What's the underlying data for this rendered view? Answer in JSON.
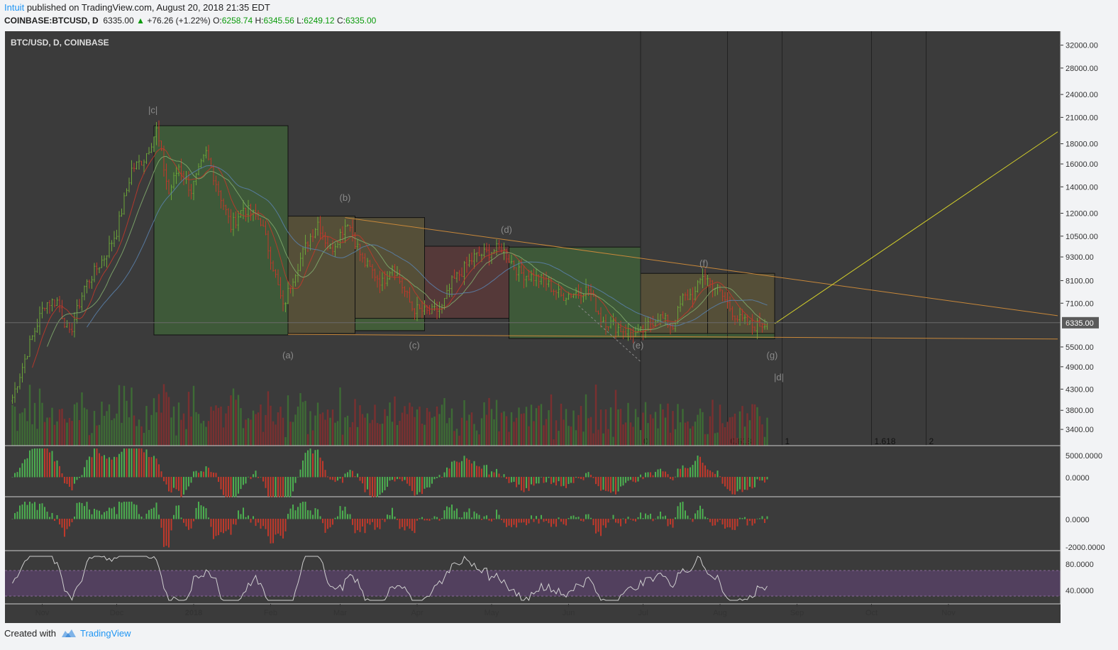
{
  "header": {
    "author": "Intuit",
    "published_text": "published on TradingView.com, August 20, 2018 21:35 EDT",
    "symbol": "COINBASE:BTCUSD, D",
    "last": "6335.00",
    "change": "+76.26 (+1.22%)",
    "o_label": "O:",
    "o": "6258.74",
    "h_label": "H:",
    "h": "6345.56",
    "l_label": "L:",
    "l": "6249.12",
    "c_label": "C:",
    "c": "6335.00"
  },
  "footer": {
    "created_with": "Created with",
    "brand": "TradingView"
  },
  "colors": {
    "background": "#3b3b3b",
    "bull": "#6ba539",
    "bear": "#c0392b",
    "green_box": "#3f5f3a",
    "brown_box": "#5a5438",
    "red_box": "#5a3a3a",
    "orange_line": "#c8883a",
    "yellow_line": "#d4d02a",
    "rsi_fill": "#52405e",
    "price_tag": "#5a5a5a"
  },
  "chart_data": {
    "type": "candlestick",
    "title": "BTC/USD, D, COINBASE",
    "scale": "log",
    "y_ticks": [
      "32000.00",
      "28000.00",
      "24000.00",
      "21000.00",
      "18000.00",
      "16000.00",
      "14000.00",
      "12000.00",
      "10500.00",
      "9300.00",
      "8100.00",
      "7100.00",
      "6335.00",
      "5500.00",
      "4900.00",
      "4300.00",
      "3800.00",
      "3400.00"
    ],
    "ylim": [
      3250,
      34000
    ],
    "x_ticks": [
      "Nov",
      "Dec",
      "2018",
      "Feb",
      "Mar",
      "Apr",
      "May",
      "Jun",
      "Jul",
      "Aug",
      "Sep",
      "Oct",
      "Nov"
    ],
    "current_price": "6335.00",
    "price_path": [
      [
        "2017-10-20",
        4100
      ],
      [
        "2017-10-27",
        5600
      ],
      [
        "2017-11-02",
        7100
      ],
      [
        "2017-11-07",
        7200
      ],
      [
        "2017-11-12",
        5900
      ],
      [
        "2017-11-18",
        7800
      ],
      [
        "2017-11-26",
        9300
      ],
      [
        "2017-12-01",
        10800
      ],
      [
        "2017-12-07",
        15500
      ],
      [
        "2017-12-12",
        16500
      ],
      [
        "2017-12-17",
        19500
      ],
      [
        "2017-12-22",
        13500
      ],
      [
        "2017-12-26",
        15800
      ],
      [
        "2017-12-31",
        13700
      ],
      [
        "2018-01-06",
        17000
      ],
      [
        "2018-01-09",
        15000
      ],
      [
        "2018-01-16",
        11100
      ],
      [
        "2018-01-21",
        12400
      ],
      [
        "2018-01-28",
        11500
      ],
      [
        "2018-02-02",
        8800
      ],
      [
        "2018-02-06",
        6900
      ],
      [
        "2018-02-10",
        8300
      ],
      [
        "2018-02-16",
        10200
      ],
      [
        "2018-02-20",
        11400
      ],
      [
        "2018-02-25",
        9600
      ],
      [
        "2018-03-04",
        11500
      ],
      [
        "2018-03-10",
        9100
      ],
      [
        "2018-03-18",
        8000
      ],
      [
        "2018-03-22",
        8900
      ],
      [
        "2018-03-30",
        6900
      ],
      [
        "2018-04-06",
        6700
      ],
      [
        "2018-04-11",
        6900
      ],
      [
        "2018-04-15",
        8000
      ],
      [
        "2018-04-24",
        9300
      ],
      [
        "2018-05-05",
        9800
      ],
      [
        "2018-05-12",
        8500
      ],
      [
        "2018-05-22",
        8100
      ],
      [
        "2018-05-29",
        7400
      ],
      [
        "2018-06-05",
        7600
      ],
      [
        "2018-06-09",
        7700
      ],
      [
        "2018-06-14",
        6500
      ],
      [
        "2018-06-22",
        6100
      ],
      [
        "2018-06-29",
        5900
      ],
      [
        "2018-07-07",
        6600
      ],
      [
        "2018-07-13",
        6200
      ],
      [
        "2018-07-17",
        7300
      ],
      [
        "2018-07-22",
        7500
      ],
      [
        "2018-07-25",
        8400
      ],
      [
        "2018-07-31",
        7700
      ],
      [
        "2018-08-08",
        6500
      ],
      [
        "2018-08-14",
        6200
      ],
      [
        "2018-08-20",
        6335
      ]
    ],
    "annotations": {
      "wave_labels": [
        "|c|",
        "(b)",
        "(a)",
        "(d)",
        "(c)",
        "(f)",
        "(e)",
        "(g)",
        "|d|"
      ],
      "fib_labels": [
        "0",
        "0.618",
        "1",
        "1.618",
        "2"
      ]
    },
    "indicators": [
      {
        "name": "MACD histogram",
        "ticks": [
          "5000.0000",
          "0.0000"
        ]
      },
      {
        "name": "Oscillator histogram",
        "ticks": [
          "0.0000",
          "-2000.0000"
        ]
      },
      {
        "name": "RSI",
        "ticks": [
          "80.0000",
          "40.0000"
        ]
      }
    ]
  }
}
